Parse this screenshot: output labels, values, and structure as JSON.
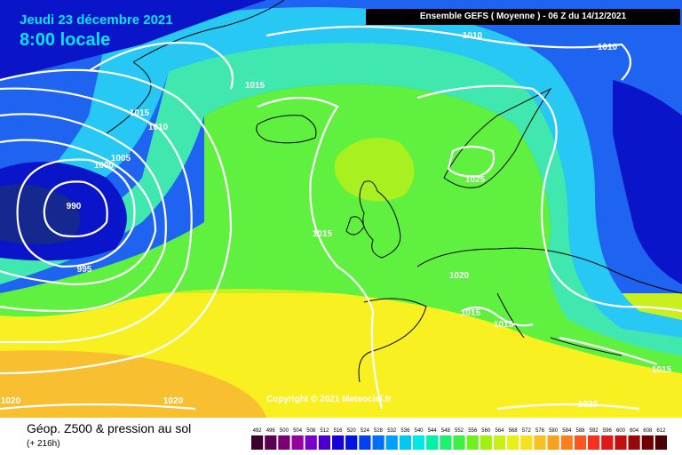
{
  "header": {
    "date": "Jeudi 23 décembre 2021",
    "time": "8:00 locale",
    "model": "Ensemble GEFS  ( Moyenne )  -  06 Z du 14/12/2021"
  },
  "footer": {
    "parameter": "Géop. Z500 & pression au sol",
    "lead": "(+ 216h)",
    "copyright": "Copyright © 2021 Meteociel.fr"
  },
  "colors": {
    "deep_blue": "#0a14c8",
    "blue": "#1e64f0",
    "cyan": "#28c8f5",
    "teal": "#40e8b0",
    "green": "#60f040",
    "lime": "#a8f020",
    "yellow": "#f8f020",
    "orange": "#f8c030",
    "isobar": "#ffffff",
    "coast": "#000000"
  },
  "isobar_labels": [
    "1010",
    "1010",
    "1015",
    "1015",
    "1010",
    "1005",
    "1000",
    "990",
    "995",
    "1025",
    "1015",
    "1020",
    "1015",
    "1015",
    "1015",
    "1020",
    "1020",
    "1020"
  ],
  "scale": {
    "values": [
      "492",
      "496",
      "500",
      "504",
      "508",
      "512",
      "516",
      "520",
      "524",
      "528",
      "532",
      "536",
      "540",
      "544",
      "548",
      "552",
      "556",
      "560",
      "564",
      "568",
      "572",
      "576",
      "580",
      "584",
      "588",
      "592",
      "596",
      "600",
      "604",
      "608",
      "612"
    ],
    "colors": [
      "#3a0030",
      "#5a0050",
      "#780070",
      "#9400a0",
      "#7800c8",
      "#4800d0",
      "#1800d8",
      "#0014e0",
      "#0040f0",
      "#0070f8",
      "#00a0f8",
      "#00c8f0",
      "#00e8e0",
      "#00f0a8",
      "#20f070",
      "#40f040",
      "#70f020",
      "#a0f010",
      "#c8f018",
      "#e8f018",
      "#f8e020",
      "#f8c020",
      "#f8a020",
      "#f88020",
      "#f85820",
      "#f83020",
      "#e01818",
      "#c01010",
      "#980808",
      "#700000",
      "#480000"
    ]
  }
}
